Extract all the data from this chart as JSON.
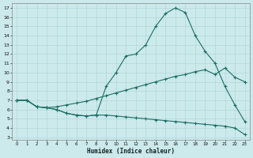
{
  "xlabel": "Humidex (Indice chaleur)",
  "bg_color": "#cce9eb",
  "grid_color": "#aad4d7",
  "line_color": "#1a6e65",
  "xlim_min": -0.5,
  "xlim_max": 23.5,
  "ylim_min": 2.7,
  "ylim_max": 17.5,
  "xticks": [
    0,
    1,
    2,
    3,
    4,
    5,
    6,
    7,
    8,
    9,
    10,
    11,
    12,
    13,
    14,
    15,
    16,
    17,
    18,
    19,
    20,
    21,
    22,
    23
  ],
  "yticks": [
    3,
    4,
    5,
    6,
    7,
    8,
    9,
    10,
    11,
    12,
    13,
    14,
    15,
    16,
    17
  ],
  "line1_x": [
    0,
    1,
    2,
    3,
    4,
    5,
    6,
    7,
    8,
    9,
    10,
    11,
    12,
    13,
    14,
    15,
    16,
    17,
    18,
    19,
    20,
    21,
    22,
    23
  ],
  "line1_y": [
    7.0,
    7.0,
    6.3,
    6.2,
    6.0,
    5.6,
    5.4,
    5.3,
    5.4,
    8.5,
    10.0,
    11.8,
    12.0,
    13.0,
    15.0,
    16.4,
    17.0,
    16.5,
    14.0,
    12.3,
    11.0,
    8.5,
    6.5,
    4.7
  ],
  "line2_x": [
    0,
    1,
    2,
    3,
    4,
    5,
    6,
    7,
    8,
    9,
    10,
    11,
    12,
    13,
    14,
    15,
    16,
    17,
    18,
    19,
    20,
    21,
    22,
    23
  ],
  "line2_y": [
    7.0,
    7.0,
    6.3,
    6.2,
    6.0,
    5.6,
    5.4,
    5.3,
    5.4,
    5.4,
    5.3,
    5.2,
    5.1,
    5.0,
    4.9,
    4.8,
    4.7,
    4.6,
    4.5,
    4.4,
    4.3,
    4.2,
    4.0,
    3.3
  ],
  "line3_x": [
    0,
    1,
    2,
    3,
    4,
    5,
    6,
    7,
    8,
    9,
    10,
    11,
    12,
    13,
    14,
    15,
    16,
    17,
    18,
    19,
    20,
    21,
    22,
    23
  ],
  "line3_y": [
    7.0,
    7.0,
    6.3,
    6.2,
    6.3,
    6.5,
    6.7,
    6.9,
    7.2,
    7.5,
    7.8,
    8.1,
    8.4,
    8.7,
    9.0,
    9.3,
    9.6,
    9.8,
    10.1,
    10.3,
    9.8,
    10.5,
    9.5,
    9.0
  ]
}
